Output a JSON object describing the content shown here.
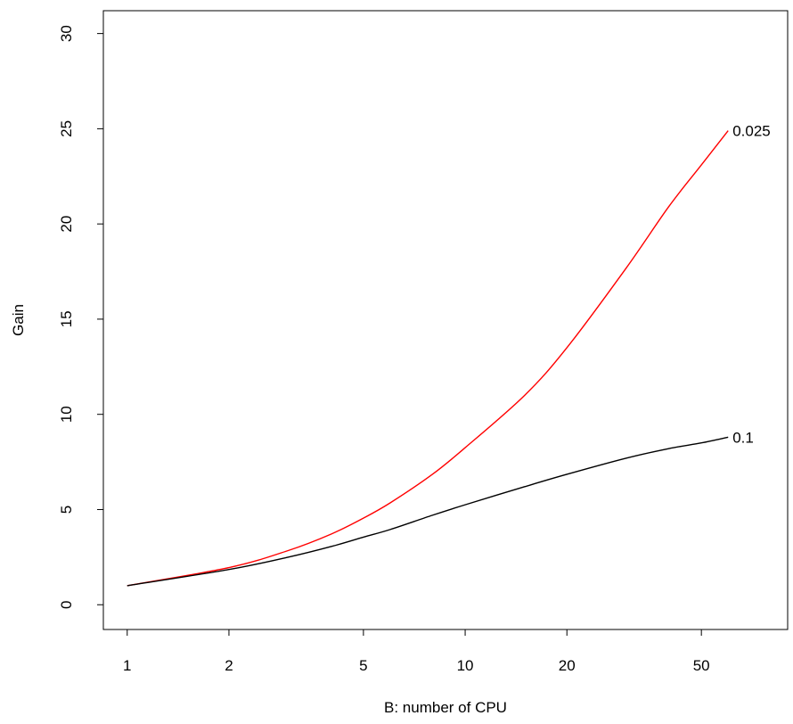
{
  "chart_data": {
    "type": "line",
    "xlabel": "B: number of CPU",
    "ylabel": "Gain",
    "x_scale": "log",
    "xlim": [
      0.85,
      90
    ],
    "ylim": [
      -1.3,
      31.2
    ],
    "x_ticks": [
      1,
      2,
      5,
      10,
      20,
      50
    ],
    "y_ticks": [
      0,
      5,
      10,
      15,
      20,
      25,
      30
    ],
    "grid": false,
    "legend": "none",
    "series": [
      {
        "name": "0.025",
        "color": "#ff0000",
        "x": [
          1,
          2,
          3,
          4,
          5,
          6,
          8,
          10,
          15,
          20,
          30,
          40,
          50,
          60
        ],
        "y": [
          1.0,
          1.95,
          2.85,
          3.7,
          4.55,
          5.35,
          6.85,
          8.25,
          11.0,
          13.5,
          17.7,
          20.9,
          23.1,
          24.9
        ]
      },
      {
        "name": "0.1",
        "color": "#000000",
        "x": [
          1,
          2,
          3,
          4,
          5,
          6,
          8,
          10,
          15,
          20,
          30,
          40,
          50,
          60
        ],
        "y": [
          1.0,
          1.85,
          2.5,
          3.05,
          3.55,
          3.95,
          4.7,
          5.25,
          6.2,
          6.85,
          7.7,
          8.2,
          8.5,
          8.8
        ]
      }
    ]
  }
}
